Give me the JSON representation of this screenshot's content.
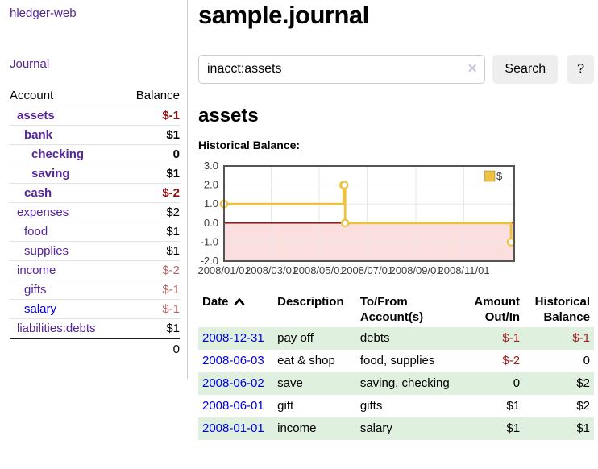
{
  "page": {
    "title": "sample.journal",
    "section_heading": "assets"
  },
  "sidebar": {
    "brand": "hledger-web",
    "nav_journal": "Journal",
    "accounts_table": {
      "headers": {
        "account": "Account",
        "balance": "Balance"
      },
      "rows": [
        {
          "name": "assets",
          "indent": 1,
          "bold": true,
          "balance": "$-1",
          "negative": true
        },
        {
          "name": "bank",
          "indent": 2,
          "bold": true,
          "balance": "$1",
          "negative": false
        },
        {
          "name": "checking",
          "indent": 3,
          "bold": true,
          "balance": "0",
          "negative": false
        },
        {
          "name": "saving",
          "indent": 3,
          "bold": true,
          "balance": "$1",
          "negative": false
        },
        {
          "name": "cash",
          "indent": 2,
          "bold": true,
          "balance": "$-2",
          "negative": true
        },
        {
          "name": "expenses",
          "indent": 1,
          "bold": false,
          "balance": "$2",
          "negative": false
        },
        {
          "name": "food",
          "indent": 2,
          "bold": false,
          "balance": "$1",
          "negative": false
        },
        {
          "name": "supplies",
          "indent": 2,
          "bold": false,
          "balance": "$1",
          "negative": false
        },
        {
          "name": "income",
          "indent": 1,
          "bold": false,
          "balance": "$-2",
          "negative": true
        },
        {
          "name": "gifts",
          "indent": 2,
          "bold": false,
          "balance": "$-1",
          "negative": true
        },
        {
          "name": "salary",
          "indent": 2,
          "bold": false,
          "balance": "$-1",
          "negative": true,
          "blue": true
        },
        {
          "name": "liabilities:debts",
          "indent": 1,
          "bold": false,
          "balance": "$1",
          "negative": false
        }
      ],
      "total": "0"
    }
  },
  "search": {
    "value": "inacct:assets",
    "clear_icon": "✕",
    "button_label": "Search",
    "help_label": "?"
  },
  "chart_data": {
    "type": "line",
    "title": "Historical Balance:",
    "step": true,
    "series": [
      {
        "name": "$",
        "color": "#edc240",
        "points": [
          [
            "2008/01/01",
            1.0
          ],
          [
            "2008/06/01",
            2.0
          ],
          [
            "2008/06/02",
            2.0
          ],
          [
            "2008/06/03",
            0.0
          ],
          [
            "2008/12/31",
            -1.0
          ]
        ]
      }
    ],
    "ylim": [
      -2.0,
      3.0
    ],
    "yticks": [
      3.0,
      2.0,
      1.0,
      0.0,
      -1.0,
      -2.0
    ],
    "xticks": [
      "2008/01/01",
      "2008/03/01",
      "2008/05/01",
      "2008/07/01",
      "2008/09/01",
      "2008/11/01"
    ],
    "xlim": [
      "2008/01/01",
      "2009/01/04"
    ],
    "grid": true,
    "legend_position": "top-right",
    "negative_region_fill": "#fbdfdf",
    "zero_line_color": "#7e0000",
    "border_color": "#545454",
    "gridline_color": "#e7e7e7"
  },
  "register": {
    "headers": {
      "date": "Date",
      "description": "Description",
      "accounts": "To/From Account(s)",
      "amount": "Amount Out/In",
      "balance": "Historical Balance"
    },
    "sort": {
      "column": "date",
      "direction": "ascending"
    },
    "rows": [
      {
        "date": "2008-12-31",
        "description": "pay off",
        "accounts": "debts",
        "amount": "$-1",
        "amount_negative": true,
        "balance": "$-1",
        "balance_negative": true
      },
      {
        "date": "2008-06-03",
        "description": "eat & shop",
        "accounts": "food, supplies",
        "amount": "$-2",
        "amount_negative": true,
        "balance": "0",
        "balance_negative": false
      },
      {
        "date": "2008-06-02",
        "description": "save",
        "accounts": "saving, checking",
        "amount": "0",
        "amount_negative": false,
        "balance": "$2",
        "balance_negative": false
      },
      {
        "date": "2008-06-01",
        "description": "gift",
        "accounts": "gifts",
        "amount": "$1",
        "amount_negative": false,
        "balance": "$2",
        "balance_negative": false
      },
      {
        "date": "2008-01-01",
        "description": "income",
        "accounts": "salary",
        "amount": "$1",
        "amount_negative": false,
        "balance": "$1",
        "balance_negative": false
      }
    ]
  },
  "colors": {
    "link_visited_purple": "#56269b",
    "link_blue": "#0000ee",
    "negative_bold_red": "#8f0d0d",
    "negative_soft_red": "#b56767",
    "negative_table_red": "#a31f1f",
    "row_stripe_green": "#dff0de",
    "series_gold": "#edc240",
    "button_gray": "#eeeeee"
  }
}
